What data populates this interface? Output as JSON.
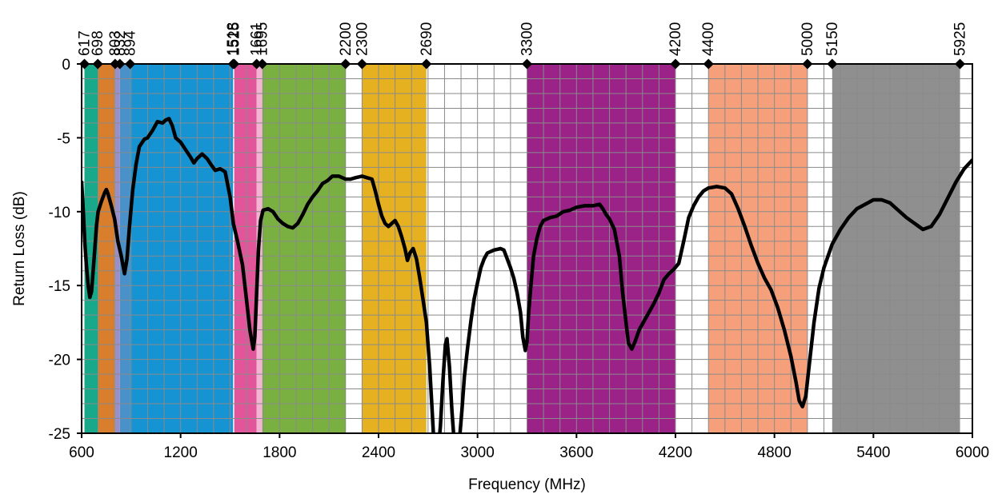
{
  "chart_data": {
    "type": "line",
    "title": "",
    "xlabel": "Frequency (MHz)",
    "ylabel": "Return Loss (dB)",
    "xlim": [
      600,
      6000
    ],
    "ylim": [
      -25,
      0
    ],
    "grid": true,
    "x_ticks": [
      600,
      1200,
      1800,
      2400,
      3000,
      3600,
      4200,
      4800,
      5400,
      6000
    ],
    "x_tick_labels": [
      "600",
      "1200",
      "1800",
      "2400",
      "3000",
      "3600",
      "4200",
      "4800",
      "5400",
      "6000"
    ],
    "y_ticks": [
      0,
      -5,
      -10,
      -15,
      -20,
      -25
    ],
    "y_tick_labels": [
      "0",
      "-5",
      "-10",
      "-15",
      "-20",
      "-25"
    ],
    "band_markers": [
      617,
      698,
      803,
      832,
      894,
      1518,
      1525,
      1661,
      1695,
      2200,
      2300,
      2690,
      3300,
      4200,
      4400,
      5000,
      5150,
      5925
    ],
    "band_marker_labels": [
      "617",
      "698",
      "803",
      "832",
      "894",
      "1518",
      "1525",
      "1661",
      "1695",
      "2200",
      "2300",
      "2690",
      "3300",
      "4200",
      "4400",
      "5000",
      "5150",
      "5925"
    ],
    "bands": [
      {
        "from": 617,
        "to": 698,
        "color": "#1aa88a"
      },
      {
        "from": 698,
        "to": 803,
        "color": "#d87e2c"
      },
      {
        "from": 803,
        "to": 832,
        "color": "#9b8fc8"
      },
      {
        "from": 832,
        "to": 894,
        "color": "#4a90c9"
      },
      {
        "from": 894,
        "to": 1518,
        "color": "#1593d2"
      },
      {
        "from": 1525,
        "to": 1661,
        "color": "#e2559b"
      },
      {
        "from": 1661,
        "to": 1695,
        "color": "#f3b3d2"
      },
      {
        "from": 1695,
        "to": 2200,
        "color": "#7ab041"
      },
      {
        "from": 2300,
        "to": 2690,
        "color": "#e6b120"
      },
      {
        "from": 3300,
        "to": 4200,
        "color": "#9b2388"
      },
      {
        "from": 4400,
        "to": 5000,
        "color": "#f5a07a"
      },
      {
        "from": 5150,
        "to": 5925,
        "color": "#8f8f90"
      }
    ],
    "series": [
      {
        "color": "#000000",
        "points": [
          [
            600,
            -8
          ],
          [
            610,
            -10
          ],
          [
            620,
            -12.2
          ],
          [
            630,
            -13.8
          ],
          [
            640,
            -15
          ],
          [
            650,
            -15.8
          ],
          [
            660,
            -15.4
          ],
          [
            670,
            -14
          ],
          [
            680,
            -12.5
          ],
          [
            690,
            -11
          ],
          [
            700,
            -10
          ],
          [
            720,
            -9.3
          ],
          [
            740,
            -8.7
          ],
          [
            750,
            -8.5
          ],
          [
            760,
            -8.8
          ],
          [
            780,
            -9.6
          ],
          [
            800,
            -10.5
          ],
          [
            820,
            -12
          ],
          [
            840,
            -13
          ],
          [
            860,
            -14.2
          ],
          [
            875,
            -13.2
          ],
          [
            890,
            -11
          ],
          [
            910,
            -8.5
          ],
          [
            930,
            -6.8
          ],
          [
            950,
            -5.6
          ],
          [
            980,
            -5.1
          ],
          [
            1000,
            -5.0
          ],
          [
            1030,
            -4.5
          ],
          [
            1060,
            -3.9
          ],
          [
            1090,
            -4.0
          ],
          [
            1110,
            -3.8
          ],
          [
            1130,
            -3.7
          ],
          [
            1150,
            -4.2
          ],
          [
            1170,
            -5.0
          ],
          [
            1200,
            -5.3
          ],
          [
            1230,
            -5.8
          ],
          [
            1260,
            -6.3
          ],
          [
            1280,
            -6.7
          ],
          [
            1300,
            -6.4
          ],
          [
            1330,
            -6.1
          ],
          [
            1360,
            -6.4
          ],
          [
            1390,
            -6.9
          ],
          [
            1410,
            -7.2
          ],
          [
            1440,
            -7.1
          ],
          [
            1470,
            -7.3
          ],
          [
            1500,
            -9.0
          ],
          [
            1520,
            -10.8
          ],
          [
            1545,
            -12.0
          ],
          [
            1575,
            -13.6
          ],
          [
            1600,
            -16.0
          ],
          [
            1620,
            -18.0
          ],
          [
            1640,
            -19.3
          ],
          [
            1650,
            -18.5
          ],
          [
            1662,
            -15.2
          ],
          [
            1672,
            -12.5
          ],
          [
            1685,
            -10.6
          ],
          [
            1700,
            -9.9
          ],
          [
            1730,
            -9.8
          ],
          [
            1760,
            -10.0
          ],
          [
            1790,
            -10.5
          ],
          [
            1820,
            -10.8
          ],
          [
            1850,
            -11.0
          ],
          [
            1880,
            -11.1
          ],
          [
            1910,
            -10.8
          ],
          [
            1940,
            -10.2
          ],
          [
            1970,
            -9.5
          ],
          [
            2000,
            -9.0
          ],
          [
            2030,
            -8.6
          ],
          [
            2060,
            -8.1
          ],
          [
            2090,
            -7.9
          ],
          [
            2120,
            -7.6
          ],
          [
            2160,
            -7.6
          ],
          [
            2200,
            -7.8
          ],
          [
            2230,
            -7.8
          ],
          [
            2260,
            -7.7
          ],
          [
            2300,
            -7.6
          ],
          [
            2330,
            -7.7
          ],
          [
            2360,
            -7.8
          ],
          [
            2380,
            -8.6
          ],
          [
            2400,
            -9.5
          ],
          [
            2420,
            -10.3
          ],
          [
            2440,
            -10.8
          ],
          [
            2460,
            -11.0
          ],
          [
            2480,
            -10.8
          ],
          [
            2500,
            -10.6
          ],
          [
            2520,
            -11.0
          ],
          [
            2540,
            -11.7
          ],
          [
            2560,
            -12.5
          ],
          [
            2575,
            -13.3
          ],
          [
            2590,
            -12.8
          ],
          [
            2610,
            -12.5
          ],
          [
            2630,
            -13.2
          ],
          [
            2650,
            -14.5
          ],
          [
            2670,
            -16.0
          ],
          [
            2690,
            -17.5
          ],
          [
            2710,
            -20.5
          ],
          [
            2725,
            -23.5
          ],
          [
            2735,
            -25.5
          ],
          [
            2745,
            -26.5
          ],
          [
            2760,
            -26.5
          ],
          [
            2775,
            -24.5
          ],
          [
            2790,
            -21.5
          ],
          [
            2805,
            -19.0
          ],
          [
            2815,
            -18.6
          ],
          [
            2830,
            -20.5
          ],
          [
            2845,
            -23.5
          ],
          [
            2860,
            -25.8
          ],
          [
            2875,
            -26.2
          ],
          [
            2890,
            -25.5
          ],
          [
            2905,
            -23.5
          ],
          [
            2920,
            -21.2
          ],
          [
            2940,
            -19.2
          ],
          [
            2960,
            -17.4
          ],
          [
            2980,
            -15.9
          ],
          [
            3000,
            -14.8
          ],
          [
            3020,
            -13.8
          ],
          [
            3040,
            -13.2
          ],
          [
            3060,
            -12.8
          ],
          [
            3100,
            -12.6
          ],
          [
            3140,
            -12.5
          ],
          [
            3160,
            -12.6
          ],
          [
            3180,
            -13.2
          ],
          [
            3200,
            -13.8
          ],
          [
            3220,
            -14.5
          ],
          [
            3240,
            -15.5
          ],
          [
            3260,
            -16.8
          ],
          [
            3275,
            -18.5
          ],
          [
            3290,
            -19.4
          ],
          [
            3300,
            -18.8
          ],
          [
            3310,
            -16.8
          ],
          [
            3325,
            -14.8
          ],
          [
            3340,
            -13.0
          ],
          [
            3360,
            -11.8
          ],
          [
            3380,
            -11.0
          ],
          [
            3400,
            -10.6
          ],
          [
            3440,
            -10.4
          ],
          [
            3480,
            -10.3
          ],
          [
            3520,
            -10.0
          ],
          [
            3560,
            -9.9
          ],
          [
            3600,
            -9.7
          ],
          [
            3650,
            -9.6
          ],
          [
            3700,
            -9.6
          ],
          [
            3740,
            -9.5
          ],
          [
            3760,
            -9.8
          ],
          [
            3780,
            -10.2
          ],
          [
            3800,
            -10.5
          ],
          [
            3830,
            -11.2
          ],
          [
            3860,
            -13.0
          ],
          [
            3880,
            -15.5
          ],
          [
            3900,
            -17.5
          ],
          [
            3915,
            -18.9
          ],
          [
            3935,
            -19.3
          ],
          [
            3955,
            -18.8
          ],
          [
            3980,
            -18.0
          ],
          [
            4010,
            -17.4
          ],
          [
            4040,
            -16.8
          ],
          [
            4070,
            -16.2
          ],
          [
            4100,
            -15.5
          ],
          [
            4130,
            -14.6
          ],
          [
            4160,
            -14.2
          ],
          [
            4190,
            -13.9
          ],
          [
            4220,
            -13.5
          ],
          [
            4250,
            -12.0
          ],
          [
            4280,
            -10.4
          ],
          [
            4310,
            -9.6
          ],
          [
            4340,
            -9.0
          ],
          [
            4370,
            -8.6
          ],
          [
            4400,
            -8.4
          ],
          [
            4450,
            -8.3
          ],
          [
            4500,
            -8.4
          ],
          [
            4540,
            -8.8
          ],
          [
            4580,
            -9.8
          ],
          [
            4620,
            -11.0
          ],
          [
            4660,
            -12.3
          ],
          [
            4700,
            -13.5
          ],
          [
            4740,
            -14.5
          ],
          [
            4780,
            -15.3
          ],
          [
            4820,
            -16.5
          ],
          [
            4860,
            -18.0
          ],
          [
            4900,
            -19.8
          ],
          [
            4930,
            -21.5
          ],
          [
            4950,
            -22.8
          ],
          [
            4970,
            -23.2
          ],
          [
            4990,
            -22.5
          ],
          [
            5010,
            -20.5
          ],
          [
            5040,
            -17.5
          ],
          [
            5070,
            -15.2
          ],
          [
            5100,
            -13.8
          ],
          [
            5150,
            -12.2
          ],
          [
            5200,
            -11.2
          ],
          [
            5250,
            -10.4
          ],
          [
            5300,
            -9.8
          ],
          [
            5350,
            -9.5
          ],
          [
            5400,
            -9.2
          ],
          [
            5450,
            -9.2
          ],
          [
            5500,
            -9.4
          ],
          [
            5550,
            -9.9
          ],
          [
            5600,
            -10.4
          ],
          [
            5650,
            -10.8
          ],
          [
            5700,
            -11.2
          ],
          [
            5750,
            -11.0
          ],
          [
            5800,
            -10.2
          ],
          [
            5850,
            -9.1
          ],
          [
            5900,
            -8.0
          ],
          [
            5950,
            -7.1
          ],
          [
            6000,
            -6.5
          ]
        ]
      }
    ]
  }
}
